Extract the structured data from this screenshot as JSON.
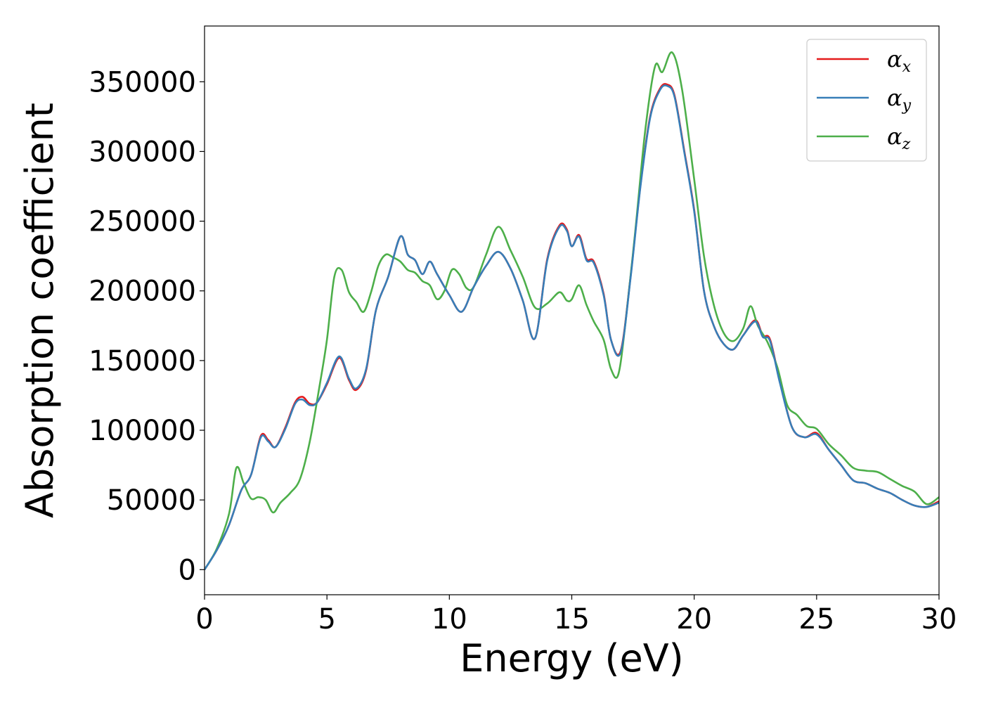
{
  "chart_data": {
    "type": "line",
    "xlabel": "Energy (eV)",
    "ylabel": "Absorption coefficient",
    "xlim": [
      0,
      30
    ],
    "ylim": [
      -18000,
      390000
    ],
    "xticks": [
      0,
      5,
      10,
      15,
      20,
      25,
      30
    ],
    "xtick_labels": [
      "0",
      "5",
      "10",
      "15",
      "20",
      "25",
      "30"
    ],
    "yticks": [
      0,
      50000,
      100000,
      150000,
      200000,
      250000,
      300000,
      350000
    ],
    "ytick_labels": [
      "0",
      "50000",
      "100000",
      "150000",
      "200000",
      "250000",
      "300000",
      "350000"
    ],
    "grid": false,
    "legend": {
      "position": "top-right",
      "entries": [
        {
          "symbol": "α",
          "sub": "x"
        },
        {
          "symbol": "α",
          "sub": "y"
        },
        {
          "symbol": "α",
          "sub": "z"
        }
      ]
    },
    "series": [
      {
        "name": "αx",
        "color": "#e41a1c",
        "x": [
          0,
          0.5,
          1.0,
          1.5,
          1.9,
          2.3,
          2.6,
          2.9,
          3.3,
          3.7,
          4.0,
          4.3,
          4.6,
          5.0,
          5.5,
          5.9,
          6.2,
          6.6,
          7.0,
          7.5,
          8.0,
          8.3,
          8.6,
          8.9,
          9.2,
          9.5,
          10.0,
          10.5,
          11.0,
          11.5,
          12.0,
          12.5,
          13.0,
          13.5,
          14.0,
          14.5,
          14.8,
          15.0,
          15.3,
          15.6,
          15.9,
          16.3,
          16.6,
          17.0,
          17.4,
          17.8,
          18.2,
          18.6,
          18.9,
          19.2,
          19.6,
          20.0,
          20.4,
          20.8,
          21.2,
          21.6,
          22.0,
          22.5,
          22.8,
          23.1,
          23.5,
          24.0,
          24.5,
          25.0,
          25.5,
          26.0,
          26.5,
          27.0,
          27.5,
          28.0,
          28.5,
          29.0,
          29.5,
          30.0
        ],
        "values": [
          0,
          14000,
          32000,
          57000,
          68000,
          96000,
          93000,
          88000,
          102000,
          120000,
          124000,
          119000,
          120000,
          133000,
          152000,
          136000,
          129000,
          143000,
          186000,
          210000,
          239000,
          226000,
          222000,
          212000,
          221000,
          212000,
          197000,
          185000,
          203000,
          218000,
          228000,
          216000,
          193000,
          166000,
          223000,
          247000,
          244000,
          232000,
          240000,
          223000,
          221000,
          198000,
          165000,
          157000,
          210000,
          275000,
          325000,
          345000,
          348000,
          340000,
          300000,
          258000,
          200000,
          175000,
          162000,
          158000,
          168000,
          179000,
          168000,
          165000,
          135000,
          102000,
          95000,
          98000,
          86000,
          75000,
          64000,
          62000,
          58000,
          55000,
          50000,
          46000,
          45000,
          49000
        ]
      },
      {
        "name": "αy",
        "color": "#377eb8",
        "x": [
          0,
          0.5,
          1.0,
          1.5,
          1.9,
          2.3,
          2.6,
          2.9,
          3.3,
          3.7,
          4.0,
          4.3,
          4.6,
          5.0,
          5.5,
          5.9,
          6.2,
          6.6,
          7.0,
          7.5,
          8.0,
          8.3,
          8.6,
          8.9,
          9.2,
          9.5,
          10.0,
          10.5,
          11.0,
          11.5,
          12.0,
          12.5,
          13.0,
          13.5,
          14.0,
          14.5,
          14.8,
          15.0,
          15.3,
          15.6,
          15.9,
          16.3,
          16.6,
          17.0,
          17.4,
          17.8,
          18.2,
          18.6,
          18.9,
          19.2,
          19.6,
          20.0,
          20.4,
          20.8,
          21.2,
          21.6,
          22.0,
          22.5,
          22.8,
          23.1,
          23.5,
          24.0,
          24.5,
          25.0,
          25.5,
          26.0,
          26.5,
          27.0,
          27.5,
          28.0,
          28.5,
          29.0,
          29.5,
          30.0
        ],
        "values": [
          0,
          14000,
          32000,
          57000,
          68000,
          95000,
          92000,
          88000,
          101000,
          119000,
          122000,
          118000,
          120000,
          134000,
          153000,
          137000,
          130000,
          144000,
          186000,
          210000,
          239000,
          226000,
          222000,
          212000,
          221000,
          212000,
          197000,
          185000,
          203000,
          218000,
          228000,
          216000,
          193000,
          166000,
          222000,
          246000,
          243000,
          232000,
          239000,
          222000,
          220000,
          197000,
          165000,
          156000,
          209000,
          274000,
          324000,
          344000,
          347000,
          339000,
          299000,
          257000,
          200000,
          175000,
          162000,
          158000,
          168000,
          178000,
          167000,
          164000,
          134000,
          102000,
          95000,
          97000,
          86000,
          75000,
          64000,
          62000,
          58000,
          55000,
          50000,
          46000,
          45000,
          48000
        ]
      },
      {
        "name": "αz",
        "color": "#4daf4a",
        "x": [
          0,
          0.5,
          1.0,
          1.3,
          1.6,
          1.9,
          2.2,
          2.5,
          2.8,
          3.1,
          3.5,
          3.9,
          4.3,
          4.7,
          5.0,
          5.3,
          5.6,
          5.9,
          6.2,
          6.5,
          6.8,
          7.1,
          7.4,
          7.7,
          8.0,
          8.3,
          8.6,
          8.9,
          9.2,
          9.5,
          9.8,
          10.1,
          10.4,
          10.7,
          11.0,
          11.5,
          12.0,
          12.5,
          13.0,
          13.5,
          14.0,
          14.5,
          14.8,
          15.0,
          15.3,
          15.6,
          15.9,
          16.3,
          16.6,
          16.9,
          17.2,
          17.6,
          18.0,
          18.4,
          18.7,
          19.1,
          19.5,
          20.0,
          20.4,
          20.8,
          21.2,
          21.6,
          22.0,
          22.3,
          22.6,
          23.0,
          23.4,
          23.8,
          24.2,
          24.6,
          25.0,
          25.5,
          26.0,
          26.5,
          27.0,
          27.5,
          28.0,
          28.5,
          29.0,
          29.5,
          30.0
        ],
        "values": [
          0,
          15000,
          40000,
          73000,
          62000,
          51000,
          52000,
          50000,
          41000,
          48000,
          55000,
          65000,
          92000,
          132000,
          165000,
          210000,
          215000,
          199000,
          192000,
          185000,
          199000,
          218000,
          226000,
          224000,
          221000,
          215000,
          213000,
          207000,
          204000,
          194000,
          200000,
          215000,
          212000,
          202000,
          203000,
          226000,
          246000,
          229000,
          210000,
          188000,
          191000,
          199000,
          193000,
          194000,
          204000,
          190000,
          178000,
          165000,
          144000,
          140000,
          178000,
          244000,
          315000,
          361000,
          357000,
          371000,
          345000,
          280000,
          225000,
          190000,
          170000,
          164000,
          173000,
          189000,
          175000,
          163000,
          145000,
          118000,
          111000,
          103000,
          101000,
          90000,
          82000,
          73000,
          71000,
          70000,
          65000,
          60000,
          56000,
          47000,
          52000
        ]
      }
    ]
  }
}
